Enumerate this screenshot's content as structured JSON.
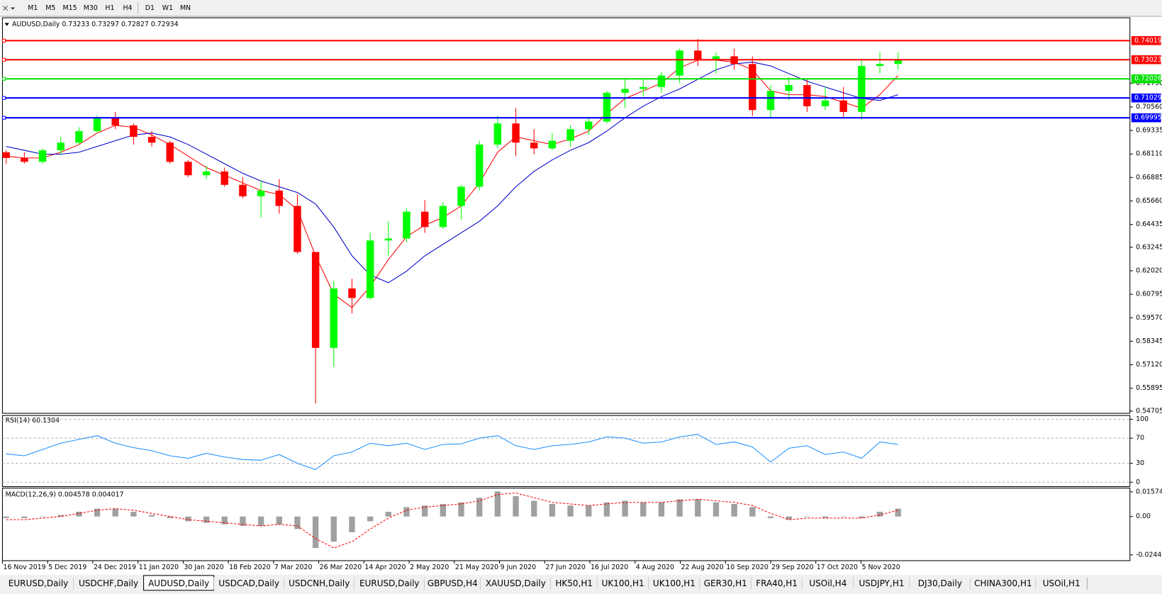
{
  "toolbar": {
    "timeframes": [
      "M1",
      "M5",
      "M15",
      "M30",
      "H1",
      "H4",
      "D1",
      "W1",
      "MN"
    ]
  },
  "tabs": [
    "EURUSD,Daily",
    "USDCHF,Daily",
    "AUDUSD,Daily",
    "USDCAD,Daily",
    "USDCNH,Daily",
    "EURUSD,Daily",
    "GBPUSD,H4",
    "XAUUSD,Daily",
    "HK50,H1",
    "UK100,H1",
    "UK100,H1",
    "GER30,H1",
    "FRA40,H1",
    "USOil,H4",
    "USDJPY,H1",
    "DJ30,Daily",
    "CHINA300,H1",
    "USOil,H1"
  ],
  "active_tab": 2,
  "chart_data": [
    {
      "type": "candlestick",
      "title": "AUDUSD,Daily  0.73233 0.73297 0.72827 0.72934",
      "up_color": "#00ff00",
      "down_color": "#ff0000",
      "ylim": [
        0.5459,
        0.7521
      ],
      "yticks": [
        0.54705,
        0.55895,
        {
          "value": 0.5712,
          "label": "0.57120"
        },
        0.58345,
        {
          "value": 0.5957,
          "label": "0.59570"
        },
        0.60795,
        {
          "value": 0.6202,
          "label": "0.62020"
        },
        0.63245,
        0.64435,
        {
          "value": 0.6566,
          "label": "0.65660"
        },
        0.66885,
        {
          "value": 0.6811,
          "label": "0.68110"
        },
        0.69335,
        {
          "value": 0.7056,
          "label": "0.70560"
        },
        {
          "value": 0.7179,
          "label": "0.71790"
        }
      ],
      "x_axis_labels": [
        "16 Nov 2019",
        "5 Dec 2019",
        "24 Dec 2019",
        "11 Jan 2020",
        "30 Jan 2020",
        "18 Feb 2020",
        "7 Mar 2020",
        "26 Mar 2020",
        "14 Apr 2020",
        "2 May 2020",
        "21 May 2020",
        "9 Jun 2020",
        "27 Jun 2020",
        "16 Jul 2020",
        "4 Aug 2020",
        "22 Aug 2020",
        "10 Sep 2020",
        "29 Sep 2020",
        "17 Oct 2020",
        "5 Nov 2020"
      ],
      "levels": [
        {
          "value": 0.74019,
          "color": "#ff0000"
        },
        {
          "value": 0.73023,
          "color": "#ff0000"
        },
        {
          "value": 0.72026,
          "color": "#00e000"
        },
        {
          "value": 0.71029,
          "color": "#0000ff"
        },
        {
          "value": 0.69995,
          "color": "#0000ff"
        }
      ],
      "ohlc": [
        [
          0.682,
          0.683,
          0.676,
          0.679
        ],
        [
          0.679,
          0.682,
          0.676,
          0.677
        ],
        [
          0.677,
          0.684,
          0.676,
          0.683
        ],
        [
          0.683,
          0.69,
          0.681,
          0.687
        ],
        [
          0.687,
          0.695,
          0.686,
          0.693
        ],
        [
          0.693,
          0.701,
          0.692,
          0.7
        ],
        [
          0.7,
          0.703,
          0.694,
          0.696
        ],
        [
          0.696,
          0.697,
          0.686,
          0.69
        ],
        [
          0.69,
          0.693,
          0.685,
          0.687
        ],
        [
          0.687,
          0.688,
          0.676,
          0.677
        ],
        [
          0.677,
          0.678,
          0.669,
          0.67
        ],
        [
          0.67,
          0.675,
          0.668,
          0.672
        ],
        [
          0.672,
          0.674,
          0.664,
          0.665
        ],
        [
          0.665,
          0.669,
          0.658,
          0.659
        ],
        [
          0.659,
          0.667,
          0.648,
          0.662
        ],
        [
          0.662,
          0.668,
          0.65,
          0.654
        ],
        [
          0.654,
          0.66,
          0.629,
          0.63
        ],
        [
          0.63,
          0.63,
          0.551,
          0.58
        ],
        [
          0.58,
          0.615,
          0.57,
          0.611
        ],
        [
          0.611,
          0.616,
          0.598,
          0.606
        ],
        [
          0.606,
          0.64,
          0.605,
          0.636
        ],
        [
          0.636,
          0.646,
          0.628,
          0.637
        ],
        [
          0.637,
          0.653,
          0.635,
          0.651
        ],
        [
          0.651,
          0.657,
          0.64,
          0.643
        ],
        [
          0.643,
          0.656,
          0.642,
          0.654
        ],
        [
          0.654,
          0.665,
          0.647,
          0.664
        ],
        [
          0.664,
          0.688,
          0.662,
          0.686
        ],
        [
          0.686,
          0.701,
          0.684,
          0.697
        ],
        [
          0.697,
          0.705,
          0.68,
          0.687
        ],
        [
          0.687,
          0.694,
          0.681,
          0.684
        ],
        [
          0.684,
          0.692,
          0.683,
          0.688
        ],
        [
          0.688,
          0.696,
          0.685,
          0.694
        ],
        [
          0.694,
          0.7,
          0.691,
          0.698
        ],
        [
          0.698,
          0.714,
          0.697,
          0.713
        ],
        [
          0.713,
          0.72,
          0.705,
          0.715
        ],
        [
          0.715,
          0.72,
          0.711,
          0.716
        ],
        [
          0.716,
          0.724,
          0.713,
          0.722
        ],
        [
          0.722,
          0.736,
          0.718,
          0.735
        ],
        [
          0.735,
          0.741,
          0.727,
          0.73
        ],
        [
          0.73,
          0.734,
          0.723,
          0.732
        ],
        [
          0.732,
          0.736,
          0.725,
          0.728
        ],
        [
          0.728,
          0.732,
          0.701,
          0.704
        ],
        [
          0.704,
          0.717,
          0.7,
          0.714
        ],
        [
          0.714,
          0.721,
          0.709,
          0.717
        ],
        [
          0.717,
          0.72,
          0.703,
          0.706
        ],
        [
          0.706,
          0.716,
          0.704,
          0.709
        ],
        [
          0.709,
          0.716,
          0.7,
          0.703
        ],
        [
          0.703,
          0.73,
          0.699,
          0.727
        ],
        [
          0.727,
          0.734,
          0.723,
          0.728
        ],
        [
          0.728,
          0.734,
          0.725,
          0.73
        ]
      ],
      "series": [
        {
          "color": "#ff0000",
          "values": [
            0.68,
            0.679,
            0.679,
            0.682,
            0.686,
            0.692,
            0.696,
            0.695,
            0.691,
            0.686,
            0.68,
            0.674,
            0.67,
            0.666,
            0.662,
            0.66,
            0.652,
            0.628,
            0.608,
            0.601,
            0.612,
            0.626,
            0.638,
            0.644,
            0.648,
            0.654,
            0.666,
            0.682,
            0.69,
            0.688,
            0.686,
            0.689,
            0.693,
            0.702,
            0.71,
            0.714,
            0.718,
            0.726,
            0.73,
            0.73,
            0.729,
            0.725,
            0.714,
            0.712,
            0.712,
            0.711,
            0.708,
            0.705,
            0.712,
            0.722
          ]
        },
        {
          "color": "#0000cc",
          "values": [
            0.685,
            0.683,
            0.681,
            0.681,
            0.682,
            0.685,
            0.688,
            0.691,
            0.692,
            0.69,
            0.686,
            0.681,
            0.676,
            0.671,
            0.667,
            0.664,
            0.661,
            0.655,
            0.643,
            0.628,
            0.618,
            0.614,
            0.62,
            0.628,
            0.634,
            0.64,
            0.646,
            0.654,
            0.664,
            0.672,
            0.678,
            0.683,
            0.687,
            0.693,
            0.7,
            0.706,
            0.711,
            0.715,
            0.72,
            0.725,
            0.728,
            0.729,
            0.727,
            0.723,
            0.719,
            0.716,
            0.713,
            0.71,
            0.709,
            0.712
          ]
        }
      ]
    },
    {
      "type": "line",
      "title": "RSI(14) 60.1304",
      "ylim": [
        -7,
        106
      ],
      "yticks": [
        0,
        30,
        70,
        100
      ],
      "color": "#1e90ff",
      "values": [
        45,
        42,
        52,
        62,
        68,
        74,
        62,
        55,
        50,
        42,
        38,
        46,
        40,
        36,
        35,
        44,
        30,
        20,
        42,
        48,
        62,
        58,
        62,
        52,
        60,
        61,
        70,
        74,
        58,
        52,
        58,
        60,
        64,
        72,
        70,
        62,
        64,
        72,
        76,
        60,
        64,
        56,
        32,
        54,
        58,
        44,
        48,
        38,
        64,
        60
      ]
    },
    {
      "type": "macd",
      "title": "MACD(12,26,9) 0.004578 0.004017",
      "ylim": [
        -0.0281,
        0.0181
      ],
      "yticks": [
        -0.024412,
        {
          "value": 0,
          "label": "0.00"
        },
        0.015741
      ],
      "histogram_color": "#a0a0a0",
      "signal_color": "#ff0000",
      "histogram": [
        -0.001,
        -0.001,
        0.0,
        0.001,
        0.003,
        0.005,
        0.005,
        0.003,
        0.001,
        -0.001,
        -0.003,
        -0.004,
        -0.005,
        -0.006,
        -0.006,
        -0.005,
        -0.008,
        -0.02,
        -0.016,
        -0.01,
        -0.003,
        0.003,
        0.006,
        0.007,
        0.008,
        0.009,
        0.012,
        0.016,
        0.013,
        0.01,
        0.008,
        0.007,
        0.007,
        0.009,
        0.01,
        0.009,
        0.009,
        0.011,
        0.011,
        0.009,
        0.008,
        0.006,
        -0.001,
        -0.002,
        0.0,
        -0.001,
        0.0,
        -0.001,
        0.003,
        0.005
      ],
      "signal": [
        -0.002,
        -0.002,
        -0.001,
        0.0,
        0.002,
        0.004,
        0.005,
        0.004,
        0.002,
        0.0,
        -0.002,
        -0.003,
        -0.004,
        -0.005,
        -0.006,
        -0.005,
        -0.006,
        -0.014,
        -0.02,
        -0.016,
        -0.008,
        -0.001,
        0.004,
        0.006,
        0.007,
        0.008,
        0.01,
        0.014,
        0.015,
        0.012,
        0.009,
        0.008,
        0.007,
        0.008,
        0.009,
        0.009,
        0.009,
        0.01,
        0.011,
        0.01,
        0.009,
        0.007,
        0.002,
        -0.002,
        -0.001,
        -0.001,
        -0.001,
        -0.001,
        0.001,
        0.004
      ]
    }
  ]
}
